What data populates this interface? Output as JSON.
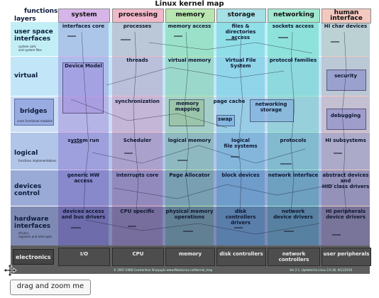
{
  "title": "Linux kernel map",
  "corner": {
    "functions": "functions",
    "layers": "layers"
  },
  "columns": [
    {
      "label": "system",
      "color": "#d7b5e8"
    },
    {
      "label": "processing",
      "color": "#f0b8c8"
    },
    {
      "label": "memory",
      "color": "#b9e6b0"
    },
    {
      "label": "storage",
      "color": "#a5e0e6"
    },
    {
      "label": "networking",
      "color": "#a0e8cf"
    },
    {
      "label": "human\ninterface",
      "color": "#f3c9bf"
    }
  ],
  "rows": [
    {
      "label": "user space\ninterfaces",
      "sub": "system calls\nand system files"
    },
    {
      "label": "virtual",
      "sub": ""
    },
    {
      "label": "bridges",
      "sub": "cross functional modules"
    },
    {
      "label": "logical",
      "sub": "functions implementations"
    },
    {
      "label": "devices\ncontrol",
      "sub": ""
    },
    {
      "label": "hardware\ninterfaces",
      "sub": "drivers,\nregisters and interrupts"
    },
    {
      "label": "electronics",
      "sub": ""
    }
  ],
  "cells": {
    "r0": [
      "interfaces core",
      "processes",
      "memory access",
      "files & directories\naccess",
      "sockets access",
      "HI char devices"
    ],
    "r1": [
      "Device Model",
      "threads",
      "virtual memory",
      "Virtual File System",
      "protocol families",
      "security"
    ],
    "r2": [
      "",
      "synchronization",
      "memory\nmapping",
      "page cache",
      "networking\nstorage",
      "debugging"
    ],
    "r2b": [
      "",
      "",
      "",
      "swap",
      "",
      ""
    ],
    "r3": [
      "system run",
      "Scheduler",
      "logical memory",
      "logical\nfile systems",
      "protocols",
      "HI subsystems"
    ],
    "r4": [
      "generic HW access",
      "interrupts core",
      "Page Allocator",
      "block devices",
      "network interface",
      "abstract devices\nand\nHID class drivers"
    ],
    "r5": [
      "devices access\nand bus drivers",
      "CPU specific",
      "physical memory\noperations",
      "disk\ncontrollers drivers",
      "network\ndevice drivers",
      "HI peripherals\ndevice drivers"
    ],
    "hw": [
      "I/O",
      "CPU",
      "memory",
      "disk controllers",
      "network controllers",
      "user peripherals"
    ]
  },
  "footer_left": "© 2007-2008 Constantine Shulyupin www.MakeLinux.net/kernel_map",
  "footer_right": "Ver 2.1. Updated to Linux 2.6.36, 9/12/2010",
  "drag_button": "drag and zoom me",
  "icons": {
    "move": "move-arrows-icon"
  }
}
